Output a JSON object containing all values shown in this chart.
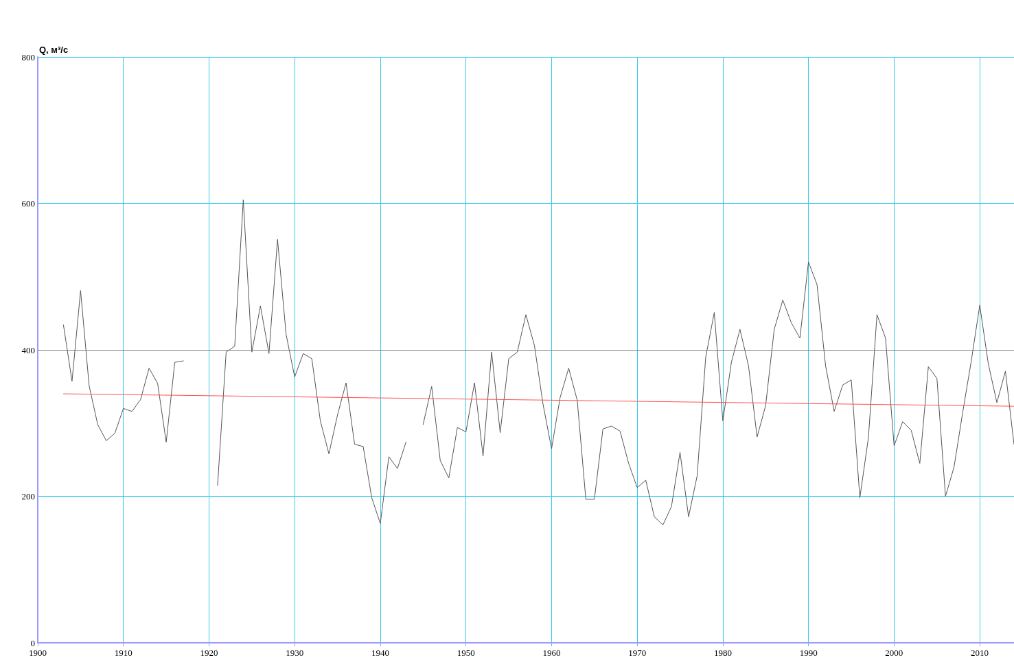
{
  "chart_data": {
    "type": "line",
    "ylabel": "Q, м³/с",
    "xlim": [
      1900,
      2014
    ],
    "xticks": [
      1900,
      1910,
      1920,
      1930,
      1940,
      1950,
      1960,
      1970,
      1980,
      1990,
      2000,
      2010
    ],
    "ylim": [
      0,
      800
    ],
    "yticks": [
      0,
      200,
      400,
      600,
      800
    ],
    "grid": true,
    "marker": "none",
    "ref_lines": [
      {
        "axis": "y",
        "value": 400,
        "label": null,
        "color": "#808080"
      }
    ],
    "series": [
      {
        "color": "#555555",
        "x": [
          1903,
          1904,
          1905,
          1906,
          1907,
          1908,
          1909,
          1910,
          1911,
          1912,
          1913,
          1914,
          1915,
          1916,
          1917,
          1918,
          1919,
          1920,
          1921,
          1922,
          1923,
          1924,
          1925,
          1926,
          1927,
          1928,
          1929,
          1930,
          1931,
          1932,
          1933,
          1934,
          1935,
          1936,
          1937,
          1938,
          1939,
          1940,
          1941,
          1942,
          1943,
          1944,
          1945,
          1946,
          1947,
          1948,
          1949,
          1950,
          1951,
          1952,
          1953,
          1954,
          1955,
          1956,
          1957,
          1958,
          1959,
          1960,
          1961,
          1962,
          1963,
          1964,
          1965,
          1966,
          1967,
          1968,
          1969,
          1970,
          1971,
          1972,
          1973,
          1974,
          1975,
          1976,
          1977,
          1978,
          1979,
          1980,
          1981,
          1982,
          1983,
          1984,
          1985,
          1986,
          1987,
          1988,
          1989,
          1990,
          1991,
          1992,
          1993,
          1994,
          1995,
          1996,
          1997,
          1998,
          1999,
          2000,
          2001,
          2002,
          2003,
          2004,
          2005,
          2006,
          2007,
          2008,
          2009,
          2010,
          2011,
          2012,
          2013,
          2014
        ],
        "values": [
          434,
          357,
          481,
          351,
          298,
          276,
          286,
          320,
          316,
          332,
          375,
          354,
          274,
          383,
          385,
          null,
          null,
          null,
          215,
          397,
          405,
          605,
          397,
          460,
          395,
          551,
          421,
          363,
          395,
          388,
          303,
          258,
          311,
          355,
          271,
          268,
          198,
          163,
          254,
          238,
          274,
          null,
          298,
          350,
          249,
          225,
          294,
          288,
          355,
          255,
          397,
          287,
          388,
          397,
          448,
          406,
          326,
          265,
          335,
          375,
          331,
          196,
          196,
          292,
          296,
          289,
          245,
          212,
          222,
          172,
          161,
          186,
          260,
          172,
          228,
          390,
          451,
          303,
          383,
          428,
          378,
          281,
          324,
          428,
          468,
          437,
          416,
          520,
          489,
          378,
          316,
          352,
          359,
          198,
          280,
          448,
          416,
          269,
          302,
          290,
          245,
          377,
          361,
          200,
          240,
          314,
          384,
          461,
          381,
          328,
          371,
          271
        ]
      },
      {
        "color": "#ff5050",
        "x": [
          1903,
          2014
        ],
        "values": [
          340,
          323
        ]
      }
    ]
  }
}
